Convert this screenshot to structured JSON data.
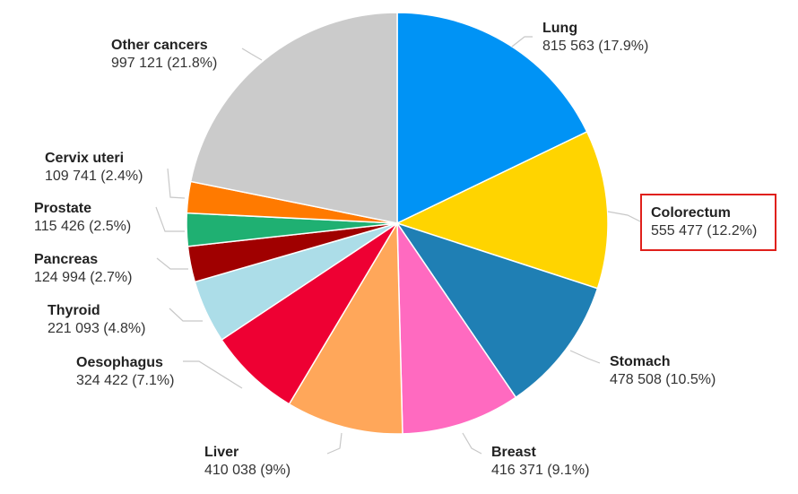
{
  "chart_data": {
    "type": "pie",
    "start_angle_deg": 0,
    "direction": "clockwise",
    "highlighted": "Colorectum",
    "slices": [
      {
        "name": "Lung",
        "value": 815563,
        "value_label": "815 563",
        "percent_label": "(17.9%)",
        "color": "#0093f5"
      },
      {
        "name": "Colorectum",
        "value": 555477,
        "value_label": "555 477",
        "percent_label": "(12.2%)",
        "color": "#ffd400"
      },
      {
        "name": "Stomach",
        "value": 478508,
        "value_label": "478 508",
        "percent_label": "(10.5%)",
        "color": "#1f7fb4"
      },
      {
        "name": "Breast",
        "value": 416371,
        "value_label": "416 371",
        "percent_label": "(9.1%)",
        "color": "#ff6ac0"
      },
      {
        "name": "Liver",
        "value": 410038,
        "value_label": "410 038",
        "percent_label": "(9%)",
        "color": "#ffa75a"
      },
      {
        "name": "Oesophagus",
        "value": 324422,
        "value_label": "324 422",
        "percent_label": "(7.1%)",
        "color": "#ee0033"
      },
      {
        "name": "Thyroid",
        "value": 221093,
        "value_label": "221 093",
        "percent_label": "(4.8%)",
        "color": "#acdde8"
      },
      {
        "name": "Pancreas",
        "value": 124994,
        "value_label": "124 994",
        "percent_label": "(2.7%)",
        "color": "#a00000"
      },
      {
        "name": "Prostate",
        "value": 115426,
        "value_label": "115 426",
        "percent_label": "(2.5%)",
        "color": "#1fb072"
      },
      {
        "name": "Cervix uteri",
        "value": 109741,
        "value_label": "109 741",
        "percent_label": "(2.4%)",
        "color": "#ff7a00"
      },
      {
        "name": "Other cancers",
        "value": 997121,
        "value_label": "997 121",
        "percent_label": "(21.8%)",
        "color": "#cbcbcb"
      }
    ]
  }
}
